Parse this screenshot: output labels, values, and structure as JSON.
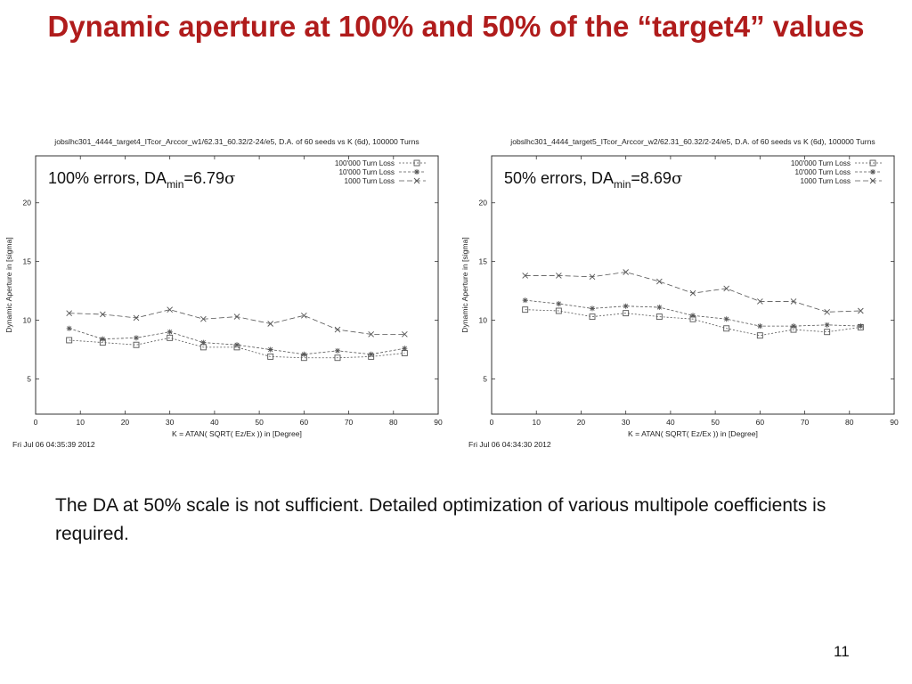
{
  "slide": {
    "title": "Dynamic aperture at 100% and 50% of the “target4” values",
    "note": "The DA at 50% scale is not sufficient. Detailed optimization of various multipole coefficients is required.",
    "page_number": "11"
  },
  "colors": {
    "title": "#b01c1c",
    "series": "#555555",
    "axis": "#333333"
  },
  "chart_data": [
    {
      "type": "line",
      "title": "jobslhc301_4444_target4_ITcor_Arccor_w1/62.31_60.32/2-24/e5, D.A. of 60 seeds vs K (6d),  100000 Turns",
      "annotation": {
        "prefix": "100% errors, DA",
        "sub": "min",
        "suffix": "=6.79",
        "symbol": "σ"
      },
      "xlabel": "K = ATAN( SQRT( Ez/Ex )) in [Degree]",
      "ylabel": "Dynamic Aperture in [sigma]",
      "timestamp": "Fri Jul 06 04:35:39 2012",
      "xlim": [
        0,
        90
      ],
      "ylim": [
        2,
        24
      ],
      "xticks": [
        0,
        10,
        20,
        30,
        40,
        50,
        60,
        70,
        80,
        90
      ],
      "yticks": [
        5,
        10,
        15,
        20
      ],
      "legend_position": "top-right",
      "x": [
        7.5,
        15,
        22.5,
        30,
        37.5,
        45,
        52.5,
        60,
        67.5,
        75,
        82.5
      ],
      "series": [
        {
          "name": "100'000 Turn Loss",
          "marker": "square",
          "dash": "2,2",
          "values": [
            8.3,
            8.1,
            7.9,
            8.5,
            7.7,
            7.7,
            6.9,
            6.8,
            6.8,
            6.9,
            7.2
          ]
        },
        {
          "name": "10'000 Turn Loss",
          "marker": "star",
          "dash": "3,2",
          "values": [
            9.3,
            8.4,
            8.5,
            9.0,
            8.1,
            7.9,
            7.5,
            7.1,
            7.4,
            7.1,
            7.6
          ]
        },
        {
          "name": "1000 Turn Loss",
          "marker": "x",
          "dash": "6,3",
          "values": [
            10.6,
            10.5,
            10.2,
            10.9,
            10.1,
            10.3,
            9.7,
            10.4,
            9.2,
            8.8,
            8.8
          ]
        }
      ]
    },
    {
      "type": "line",
      "title": "jobslhc301_4444_target5_ITcor_Arccor_w2/62.31_60.32/2-24/e5, D.A. of 60 seeds vs K (6d),  100000 Turns",
      "annotation": {
        "prefix": "50% errors, DA",
        "sub": "min",
        "suffix": "=8.69",
        "symbol": "σ"
      },
      "xlabel": "K = ATAN( SQRT( Ez/Ex )) in [Degree]",
      "ylabel": "Dynamic Aperture in [sigma]",
      "timestamp": "Fri Jul 06 04:34:30 2012",
      "xlim": [
        0,
        90
      ],
      "ylim": [
        2,
        24
      ],
      "xticks": [
        0,
        10,
        20,
        30,
        40,
        50,
        60,
        70,
        80,
        90
      ],
      "yticks": [
        5,
        10,
        15,
        20
      ],
      "legend_position": "top-right",
      "x": [
        7.5,
        15,
        22.5,
        30,
        37.5,
        45,
        52.5,
        60,
        67.5,
        75,
        82.5
      ],
      "series": [
        {
          "name": "100'000 Turn Loss",
          "marker": "square",
          "dash": "2,2",
          "values": [
            10.9,
            10.8,
            10.3,
            10.6,
            10.3,
            10.1,
            9.3,
            8.7,
            9.2,
            9.0,
            9.4
          ]
        },
        {
          "name": "10'000 Turn Loss",
          "marker": "star",
          "dash": "3,2",
          "values": [
            11.7,
            11.4,
            11.0,
            11.2,
            11.1,
            10.4,
            10.1,
            9.5,
            9.5,
            9.6,
            9.5
          ]
        },
        {
          "name": "1000 Turn Loss",
          "marker": "x",
          "dash": "6,3",
          "values": [
            13.8,
            13.8,
            13.7,
            14.1,
            13.3,
            12.3,
            12.7,
            11.6,
            11.6,
            10.7,
            10.8
          ]
        }
      ]
    }
  ]
}
